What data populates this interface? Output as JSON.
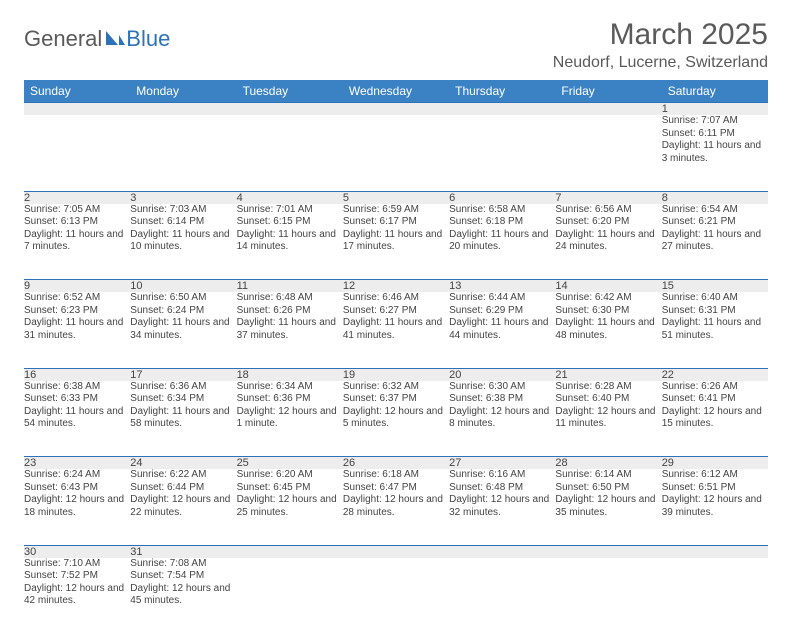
{
  "logo": {
    "text1": "General",
    "text2": "Blue"
  },
  "title": {
    "month": "March 2025",
    "location": "Neudorf, Lucerne, Switzerland"
  },
  "weekdays": [
    "Sunday",
    "Monday",
    "Tuesday",
    "Wednesday",
    "Thursday",
    "Friday",
    "Saturday"
  ],
  "colors": {
    "header_bg": "#3b82c4",
    "header_text": "#ffffff",
    "daynum_bg": "#ededed",
    "border": "#2d72b8",
    "text": "#444444"
  },
  "weeks": [
    [
      null,
      null,
      null,
      null,
      null,
      null,
      {
        "n": "1",
        "sunrise": "Sunrise: 7:07 AM",
        "sunset": "Sunset: 6:11 PM",
        "daylight": "Daylight: 11 hours and 3 minutes."
      }
    ],
    [
      {
        "n": "2",
        "sunrise": "Sunrise: 7:05 AM",
        "sunset": "Sunset: 6:13 PM",
        "daylight": "Daylight: 11 hours and 7 minutes."
      },
      {
        "n": "3",
        "sunrise": "Sunrise: 7:03 AM",
        "sunset": "Sunset: 6:14 PM",
        "daylight": "Daylight: 11 hours and 10 minutes."
      },
      {
        "n": "4",
        "sunrise": "Sunrise: 7:01 AM",
        "sunset": "Sunset: 6:15 PM",
        "daylight": "Daylight: 11 hours and 14 minutes."
      },
      {
        "n": "5",
        "sunrise": "Sunrise: 6:59 AM",
        "sunset": "Sunset: 6:17 PM",
        "daylight": "Daylight: 11 hours and 17 minutes."
      },
      {
        "n": "6",
        "sunrise": "Sunrise: 6:58 AM",
        "sunset": "Sunset: 6:18 PM",
        "daylight": "Daylight: 11 hours and 20 minutes."
      },
      {
        "n": "7",
        "sunrise": "Sunrise: 6:56 AM",
        "sunset": "Sunset: 6:20 PM",
        "daylight": "Daylight: 11 hours and 24 minutes."
      },
      {
        "n": "8",
        "sunrise": "Sunrise: 6:54 AM",
        "sunset": "Sunset: 6:21 PM",
        "daylight": "Daylight: 11 hours and 27 minutes."
      }
    ],
    [
      {
        "n": "9",
        "sunrise": "Sunrise: 6:52 AM",
        "sunset": "Sunset: 6:23 PM",
        "daylight": "Daylight: 11 hours and 31 minutes."
      },
      {
        "n": "10",
        "sunrise": "Sunrise: 6:50 AM",
        "sunset": "Sunset: 6:24 PM",
        "daylight": "Daylight: 11 hours and 34 minutes."
      },
      {
        "n": "11",
        "sunrise": "Sunrise: 6:48 AM",
        "sunset": "Sunset: 6:26 PM",
        "daylight": "Daylight: 11 hours and 37 minutes."
      },
      {
        "n": "12",
        "sunrise": "Sunrise: 6:46 AM",
        "sunset": "Sunset: 6:27 PM",
        "daylight": "Daylight: 11 hours and 41 minutes."
      },
      {
        "n": "13",
        "sunrise": "Sunrise: 6:44 AM",
        "sunset": "Sunset: 6:29 PM",
        "daylight": "Daylight: 11 hours and 44 minutes."
      },
      {
        "n": "14",
        "sunrise": "Sunrise: 6:42 AM",
        "sunset": "Sunset: 6:30 PM",
        "daylight": "Daylight: 11 hours and 48 minutes."
      },
      {
        "n": "15",
        "sunrise": "Sunrise: 6:40 AM",
        "sunset": "Sunset: 6:31 PM",
        "daylight": "Daylight: 11 hours and 51 minutes."
      }
    ],
    [
      {
        "n": "16",
        "sunrise": "Sunrise: 6:38 AM",
        "sunset": "Sunset: 6:33 PM",
        "daylight": "Daylight: 11 hours and 54 minutes."
      },
      {
        "n": "17",
        "sunrise": "Sunrise: 6:36 AM",
        "sunset": "Sunset: 6:34 PM",
        "daylight": "Daylight: 11 hours and 58 minutes."
      },
      {
        "n": "18",
        "sunrise": "Sunrise: 6:34 AM",
        "sunset": "Sunset: 6:36 PM",
        "daylight": "Daylight: 12 hours and 1 minute."
      },
      {
        "n": "19",
        "sunrise": "Sunrise: 6:32 AM",
        "sunset": "Sunset: 6:37 PM",
        "daylight": "Daylight: 12 hours and 5 minutes."
      },
      {
        "n": "20",
        "sunrise": "Sunrise: 6:30 AM",
        "sunset": "Sunset: 6:38 PM",
        "daylight": "Daylight: 12 hours and 8 minutes."
      },
      {
        "n": "21",
        "sunrise": "Sunrise: 6:28 AM",
        "sunset": "Sunset: 6:40 PM",
        "daylight": "Daylight: 12 hours and 11 minutes."
      },
      {
        "n": "22",
        "sunrise": "Sunrise: 6:26 AM",
        "sunset": "Sunset: 6:41 PM",
        "daylight": "Daylight: 12 hours and 15 minutes."
      }
    ],
    [
      {
        "n": "23",
        "sunrise": "Sunrise: 6:24 AM",
        "sunset": "Sunset: 6:43 PM",
        "daylight": "Daylight: 12 hours and 18 minutes."
      },
      {
        "n": "24",
        "sunrise": "Sunrise: 6:22 AM",
        "sunset": "Sunset: 6:44 PM",
        "daylight": "Daylight: 12 hours and 22 minutes."
      },
      {
        "n": "25",
        "sunrise": "Sunrise: 6:20 AM",
        "sunset": "Sunset: 6:45 PM",
        "daylight": "Daylight: 12 hours and 25 minutes."
      },
      {
        "n": "26",
        "sunrise": "Sunrise: 6:18 AM",
        "sunset": "Sunset: 6:47 PM",
        "daylight": "Daylight: 12 hours and 28 minutes."
      },
      {
        "n": "27",
        "sunrise": "Sunrise: 6:16 AM",
        "sunset": "Sunset: 6:48 PM",
        "daylight": "Daylight: 12 hours and 32 minutes."
      },
      {
        "n": "28",
        "sunrise": "Sunrise: 6:14 AM",
        "sunset": "Sunset: 6:50 PM",
        "daylight": "Daylight: 12 hours and 35 minutes."
      },
      {
        "n": "29",
        "sunrise": "Sunrise: 6:12 AM",
        "sunset": "Sunset: 6:51 PM",
        "daylight": "Daylight: 12 hours and 39 minutes."
      }
    ],
    [
      {
        "n": "30",
        "sunrise": "Sunrise: 7:10 AM",
        "sunset": "Sunset: 7:52 PM",
        "daylight": "Daylight: 12 hours and 42 minutes."
      },
      {
        "n": "31",
        "sunrise": "Sunrise: 7:08 AM",
        "sunset": "Sunset: 7:54 PM",
        "daylight": "Daylight: 12 hours and 45 minutes."
      },
      null,
      null,
      null,
      null,
      null
    ]
  ]
}
